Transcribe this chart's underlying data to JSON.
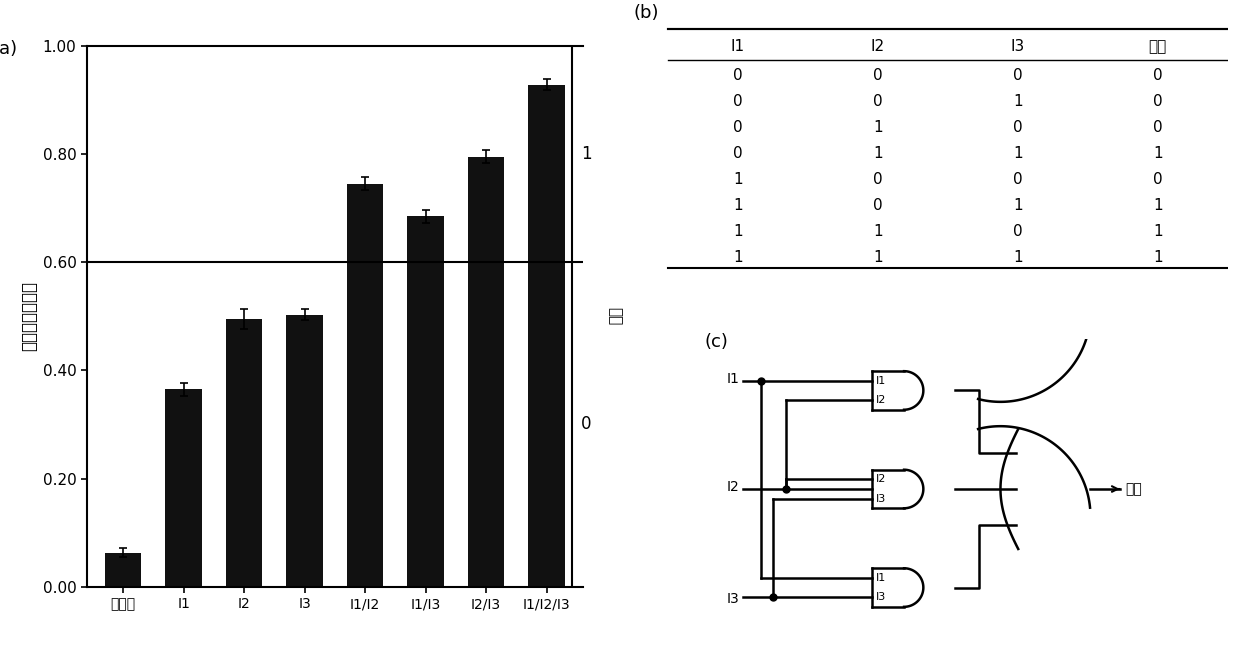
{
  "bar_categories": [
    "无输入",
    "I1",
    "I2",
    "I3",
    "I1/I2",
    "I1/I3",
    "I2/I3",
    "I1/I2/I3"
  ],
  "bar_values": [
    0.063,
    0.365,
    0.495,
    0.503,
    0.745,
    0.685,
    0.795,
    0.928
  ],
  "bar_errors": [
    0.008,
    0.012,
    0.018,
    0.01,
    0.012,
    0.012,
    0.012,
    0.01
  ],
  "bar_color": "#111111",
  "threshold_line": 0.6,
  "ylabel": "归一化荧光强度",
  "ylim": [
    0.0,
    1.0
  ],
  "yticks": [
    0.0,
    0.2,
    0.4,
    0.6,
    0.8,
    1.0
  ],
  "threshold_label_1": "1",
  "threshold_label_0": "0",
  "output_label": "输出",
  "panel_a_label": "(a)",
  "panel_b_label": "(b)",
  "panel_c_label": "(c)",
  "table_headers": [
    "I1",
    "I2",
    "I3",
    "输出"
  ],
  "table_data": [
    [
      0,
      0,
      0,
      0
    ],
    [
      0,
      0,
      1,
      0
    ],
    [
      0,
      1,
      0,
      0
    ],
    [
      0,
      1,
      1,
      1
    ],
    [
      1,
      0,
      0,
      0
    ],
    [
      1,
      0,
      1,
      1
    ],
    [
      1,
      1,
      0,
      1
    ],
    [
      1,
      1,
      1,
      1
    ]
  ],
  "circuit_output_label": "输出"
}
